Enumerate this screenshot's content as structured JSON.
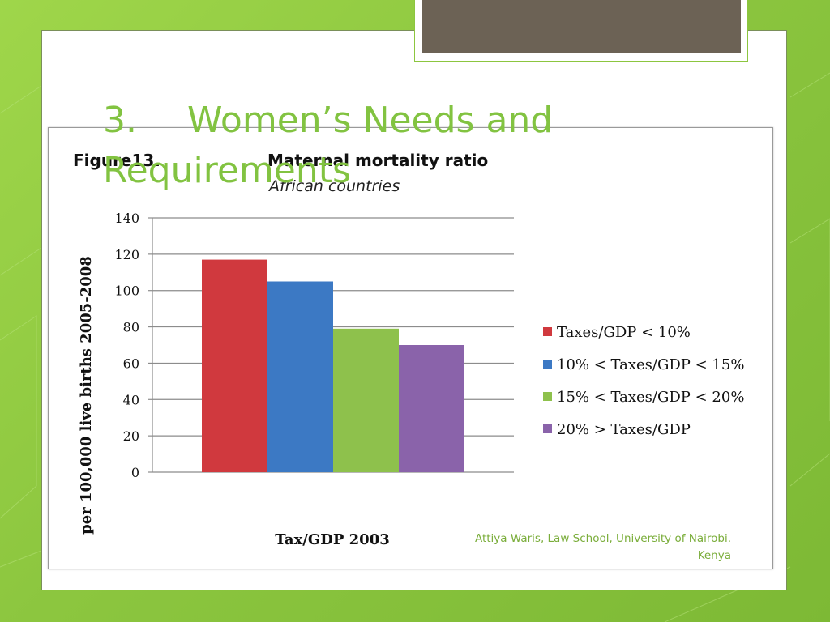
{
  "slide": {
    "title_number": "3.",
    "title_text": "Women’s Needs and Requirements",
    "footer": "Attiya Waris, Law School, University of Nairobi. Kenya"
  },
  "figure": {
    "label": "Figure13.",
    "heading": "Maternal mortality ratio",
    "subheading": "African countries"
  },
  "colors": {
    "background": "#8cc63f",
    "title": "#82c341",
    "footer": "#7aad3a",
    "header_tab": "#6c6255"
  },
  "chart_data": {
    "type": "bar",
    "title": "Maternal mortality ratio",
    "subtitle": "African countries",
    "xlabel": "Tax/GDP 2003",
    "ylabel": "per 100,000 live births 2005-2008",
    "ylim": [
      0,
      140
    ],
    "yticks": [
      0,
      20,
      40,
      60,
      80,
      100,
      120,
      140
    ],
    "grid": true,
    "legend_position": "right",
    "series": [
      {
        "name": "Taxes/GDP < 10%",
        "value": 117,
        "color": "#d0393e"
      },
      {
        "name": "10% < Taxes/GDP < 15%",
        "value": 105,
        "color": "#3c79c4"
      },
      {
        "name": "15% < Taxes/GDP < 20%",
        "value": 79,
        "color": "#8ec14c"
      },
      {
        "name": "20% > Taxes/GDP",
        "value": 70,
        "color": "#8a63aa"
      }
    ]
  }
}
